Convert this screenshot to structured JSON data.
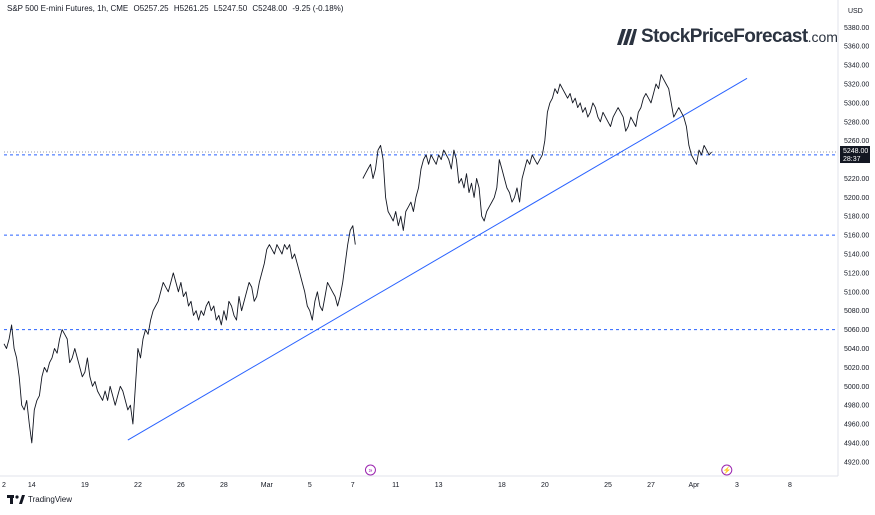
{
  "header": {
    "symbol": "S&P 500 E-mini Futures, 1h, CME",
    "open": "O5257.25",
    "high": "H5261.25",
    "low": "L5247.50",
    "close": "C5248.00",
    "change": "-9.25 (-0.18%)"
  },
  "logo": {
    "name": "StockPriceForecast",
    "domain": ".com"
  },
  "footer": {
    "brand": "TradingView"
  },
  "price_tag": {
    "value": "5248.00",
    "countdown": "28:37"
  },
  "colors": {
    "price_line": "#131722",
    "trendline": "#2962ff",
    "levels": "#2962ff",
    "tag_bg": "#131722",
    "event_marker": "#9c27b0"
  },
  "chart_data": {
    "type": "line",
    "currency_label": "USD",
    "ylim": [
      4905,
      5392
    ],
    "y_ticks": [
      4920,
      4940,
      4960,
      4980,
      5000,
      5020,
      5040,
      5060,
      5080,
      5100,
      5120,
      5140,
      5160,
      5180,
      5200,
      5220,
      5240,
      5260,
      5280,
      5300,
      5320,
      5340,
      5360,
      5380
    ],
    "x_ticks": [
      {
        "label": "2",
        "t": 0
      },
      {
        "label": "14",
        "t": 11
      },
      {
        "label": "19",
        "t": 32
      },
      {
        "label": "22",
        "t": 53
      },
      {
        "label": "26",
        "t": 70
      },
      {
        "label": "28",
        "t": 87
      },
      {
        "label": "Mar",
        "t": 104
      },
      {
        "label": "5",
        "t": 121
      },
      {
        "label": "7",
        "t": 138
      },
      {
        "label": "11",
        "t": 155
      },
      {
        "label": "13",
        "t": 172
      },
      {
        "label": "18",
        "t": 197
      },
      {
        "label": "20",
        "t": 214
      },
      {
        "label": "25",
        "t": 239
      },
      {
        "label": "27",
        "t": 256
      },
      {
        "label": "Apr",
        "t": 273
      },
      {
        "label": "3",
        "t": 290
      },
      {
        "label": "8",
        "t": 311
      }
    ],
    "xlim": [
      0,
      330
    ],
    "series": [
      {
        "points": [
          [
            0,
            5045
          ],
          [
            1,
            5040
          ],
          [
            2,
            5050
          ],
          [
            3,
            5065
          ],
          [
            4,
            5040
          ],
          [
            5,
            5030
          ],
          [
            6,
            5010
          ],
          [
            7,
            4980
          ],
          [
            8,
            4975
          ],
          [
            9,
            4985
          ],
          [
            10,
            4960
          ],
          [
            11,
            4940
          ],
          [
            12,
            4975
          ],
          [
            13,
            4985
          ],
          [
            14,
            4990
          ],
          [
            15,
            5010
          ],
          [
            16,
            5020
          ],
          [
            17,
            5015
          ],
          [
            18,
            5025
          ],
          [
            19,
            5030
          ],
          [
            20,
            5040
          ],
          [
            21,
            5035
          ],
          [
            22,
            5050
          ],
          [
            23,
            5060
          ],
          [
            24,
            5055
          ],
          [
            25,
            5050
          ],
          [
            26,
            5025
          ],
          [
            27,
            5030
          ],
          [
            28,
            5040
          ],
          [
            29,
            5030
          ],
          [
            30,
            5020
          ],
          [
            31,
            5010
          ],
          [
            32,
            5015
          ],
          [
            33,
            5030
          ],
          [
            34,
            5010
          ],
          [
            35,
            5000
          ],
          [
            36,
            5005
          ],
          [
            37,
            4995
          ],
          [
            38,
            4990
          ],
          [
            39,
            4985
          ],
          [
            40,
            4995
          ],
          [
            41,
            4985
          ],
          [
            42,
            5000
          ],
          [
            43,
            4990
          ],
          [
            44,
            4980
          ],
          [
            45,
            4990
          ],
          [
            46,
            5000
          ],
          [
            47,
            4995
          ],
          [
            48,
            4985
          ],
          [
            49,
            4975
          ],
          [
            50,
            4980
          ],
          [
            51,
            4960
          ],
          [
            52,
            5000
          ],
          [
            53,
            5040
          ],
          [
            54,
            5030
          ],
          [
            55,
            5050
          ],
          [
            56,
            5060
          ],
          [
            57,
            5055
          ],
          [
            58,
            5070
          ],
          [
            59,
            5080
          ],
          [
            60,
            5085
          ],
          [
            61,
            5090
          ],
          [
            62,
            5100
          ],
          [
            63,
            5110
          ],
          [
            64,
            5105
          ],
          [
            65,
            5100
          ],
          [
            66,
            5110
          ],
          [
            67,
            5120
          ],
          [
            68,
            5110
          ],
          [
            69,
            5100
          ],
          [
            70,
            5110
          ],
          [
            71,
            5095
          ],
          [
            72,
            5100
          ],
          [
            73,
            5085
          ],
          [
            74,
            5090
          ],
          [
            75,
            5075
          ],
          [
            76,
            5080
          ],
          [
            77,
            5070
          ],
          [
            78,
            5080
          ],
          [
            79,
            5075
          ],
          [
            80,
            5085
          ],
          [
            81,
            5090
          ],
          [
            82,
            5080
          ],
          [
            83,
            5085
          ],
          [
            84,
            5070
          ],
          [
            85,
            5075
          ],
          [
            86,
            5065
          ],
          [
            87,
            5080
          ],
          [
            88,
            5070
          ],
          [
            89,
            5090
          ],
          [
            90,
            5085
          ],
          [
            91,
            5075
          ],
          [
            92,
            5070
          ],
          [
            93,
            5095
          ],
          [
            94,
            5080
          ],
          [
            95,
            5090
          ],
          [
            96,
            5100
          ],
          [
            97,
            5110
          ],
          [
            98,
            5105
          ],
          [
            99,
            5090
          ],
          [
            100,
            5095
          ],
          [
            101,
            5110
          ],
          [
            102,
            5120
          ],
          [
            103,
            5130
          ],
          [
            104,
            5145
          ],
          [
            105,
            5150
          ],
          [
            106,
            5145
          ],
          [
            107,
            5140
          ],
          [
            108,
            5150
          ],
          [
            109,
            5145
          ],
          [
            110,
            5140
          ],
          [
            111,
            5150
          ],
          [
            112,
            5145
          ],
          [
            113,
            5150
          ],
          [
            114,
            5135
          ],
          [
            115,
            5140
          ],
          [
            116,
            5130
          ],
          [
            117,
            5120
          ],
          [
            118,
            5110
          ],
          [
            119,
            5100
          ],
          [
            120,
            5085
          ],
          [
            121,
            5080
          ],
          [
            122,
            5070
          ],
          [
            123,
            5090
          ],
          [
            124,
            5100
          ],
          [
            125,
            5085
          ],
          [
            126,
            5080
          ],
          [
            127,
            5095
          ],
          [
            128,
            5110
          ],
          [
            129,
            5105
          ],
          [
            130,
            5100
          ],
          [
            131,
            5095
          ],
          [
            132,
            5085
          ],
          [
            133,
            5095
          ],
          [
            134,
            5110
          ],
          [
            135,
            5130
          ],
          [
            136,
            5150
          ],
          [
            137,
            5165
          ],
          [
            138,
            5170
          ],
          [
            139,
            5150
          ],
          [
            142,
            5220
          ],
          [
            143,
            5225
          ],
          [
            144,
            5230
          ],
          [
            145,
            5235
          ],
          [
            146,
            5220
          ],
          [
            147,
            5230
          ],
          [
            148,
            5250
          ],
          [
            149,
            5255
          ],
          [
            150,
            5240
          ],
          [
            151,
            5200
          ],
          [
            152,
            5185
          ],
          [
            153,
            5180
          ],
          [
            154,
            5175
          ],
          [
            155,
            5185
          ],
          [
            156,
            5170
          ],
          [
            157,
            5180
          ],
          [
            158,
            5165
          ],
          [
            159,
            5185
          ],
          [
            160,
            5190
          ],
          [
            161,
            5195
          ],
          [
            162,
            5185
          ],
          [
            163,
            5200
          ],
          [
            164,
            5210
          ],
          [
            165,
            5230
          ],
          [
            166,
            5240
          ],
          [
            167,
            5245
          ],
          [
            168,
            5235
          ],
          [
            169,
            5245
          ],
          [
            170,
            5240
          ],
          [
            171,
            5235
          ],
          [
            172,
            5245
          ],
          [
            173,
            5240
          ],
          [
            174,
            5250
          ],
          [
            175,
            5245
          ],
          [
            176,
            5240
          ],
          [
            177,
            5230
          ],
          [
            178,
            5250
          ],
          [
            179,
            5240
          ],
          [
            180,
            5215
          ],
          [
            181,
            5220
          ],
          [
            182,
            5210
          ],
          [
            183,
            5225
          ],
          [
            184,
            5205
          ],
          [
            185,
            5215
          ],
          [
            186,
            5200
          ],
          [
            187,
            5220
          ],
          [
            188,
            5210
          ],
          [
            189,
            5180
          ],
          [
            190,
            5175
          ],
          [
            191,
            5185
          ],
          [
            192,
            5190
          ],
          [
            193,
            5195
          ],
          [
            194,
            5200
          ],
          [
            195,
            5210
          ],
          [
            196,
            5240
          ],
          [
            197,
            5230
          ],
          [
            198,
            5220
          ],
          [
            199,
            5210
          ],
          [
            200,
            5205
          ],
          [
            201,
            5195
          ],
          [
            202,
            5200
          ],
          [
            203,
            5210
          ],
          [
            204,
            5195
          ],
          [
            205,
            5220
          ],
          [
            206,
            5230
          ],
          [
            207,
            5240
          ],
          [
            208,
            5235
          ],
          [
            209,
            5245
          ],
          [
            210,
            5240
          ],
          [
            211,
            5235
          ],
          [
            212,
            5240
          ],
          [
            213,
            5245
          ],
          [
            214,
            5260
          ],
          [
            215,
            5290
          ],
          [
            216,
            5300
          ],
          [
            217,
            5305
          ],
          [
            218,
            5315
          ],
          [
            219,
            5310
          ],
          [
            220,
            5320
          ],
          [
            221,
            5315
          ],
          [
            222,
            5310
          ],
          [
            223,
            5305
          ],
          [
            224,
            5310
          ],
          [
            225,
            5300
          ],
          [
            226,
            5305
          ],
          [
            227,
            5295
          ],
          [
            228,
            5300
          ],
          [
            229,
            5290
          ],
          [
            230,
            5295
          ],
          [
            231,
            5285
          ],
          [
            232,
            5290
          ],
          [
            233,
            5300
          ],
          [
            234,
            5295
          ],
          [
            235,
            5285
          ],
          [
            236,
            5280
          ],
          [
            237,
            5290
          ],
          [
            238,
            5285
          ],
          [
            239,
            5280
          ],
          [
            240,
            5275
          ],
          [
            241,
            5285
          ],
          [
            242,
            5290
          ],
          [
            243,
            5295
          ],
          [
            244,
            5290
          ],
          [
            245,
            5285
          ],
          [
            246,
            5270
          ],
          [
            247,
            5275
          ],
          [
            248,
            5285
          ],
          [
            249,
            5280
          ],
          [
            250,
            5275
          ],
          [
            251,
            5290
          ],
          [
            252,
            5295
          ],
          [
            253,
            5305
          ],
          [
            254,
            5310
          ],
          [
            255,
            5305
          ],
          [
            256,
            5300
          ],
          [
            257,
            5310
          ],
          [
            258,
            5320
          ],
          [
            259,
            5315
          ],
          [
            260,
            5330
          ],
          [
            261,
            5325
          ],
          [
            262,
            5320
          ],
          [
            263,
            5315
          ],
          [
            264,
            5300
          ],
          [
            265,
            5285
          ],
          [
            266,
            5290
          ],
          [
            267,
            5295
          ],
          [
            268,
            5290
          ],
          [
            269,
            5285
          ],
          [
            270,
            5275
          ],
          [
            271,
            5255
          ],
          [
            272,
            5245
          ],
          [
            273,
            5240
          ],
          [
            274,
            5235
          ],
          [
            275,
            5250
          ],
          [
            276,
            5245
          ],
          [
            277,
            5255
          ],
          [
            278,
            5250
          ],
          [
            279,
            5245
          ],
          [
            280,
            5248
          ]
        ]
      }
    ],
    "trendline": {
      "from": [
        49,
        4943
      ],
      "to": [
        294,
        5326
      ]
    },
    "horizontal_levels": [
      5245,
      5160,
      5060
    ],
    "current_price_level": 5248,
    "event_markers": [
      {
        "t": 145,
        "label": "»"
      },
      {
        "t": 286,
        "label": "⚡"
      }
    ]
  }
}
